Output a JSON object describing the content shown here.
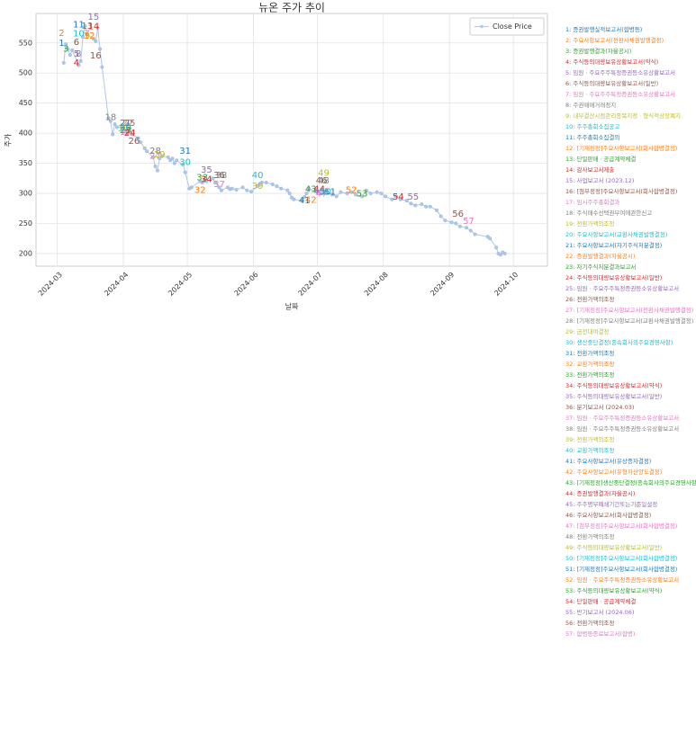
{
  "chart_data": {
    "type": "line",
    "title": "뉴온 주가 추이",
    "x_label": "날짜",
    "y_label": "주가",
    "grid": true,
    "legend": "upper right",
    "xlim": [
      "2024-02-20",
      "2024-10-17"
    ],
    "xticks": [
      "2024-03",
      "2024-04",
      "2024-05",
      "2024-06",
      "2024-07",
      "2024-08",
      "2024-09",
      "2024-10"
    ],
    "ylim": [
      179,
      599
    ],
    "yticks": [
      200,
      250,
      300,
      350,
      400,
      450,
      500,
      550
    ],
    "x": [
      "2024-03-04",
      "2024-03-05",
      "2024-03-06",
      "2024-03-07",
      "2024-03-08",
      "2024-03-11",
      "2024-03-12",
      "2024-03-13",
      "2024-03-14",
      "2024-03-15",
      "2024-03-18",
      "2024-03-19",
      "2024-03-20",
      "2024-03-21",
      "2024-03-22",
      "2024-03-25",
      "2024-03-26",
      "2024-03-27",
      "2024-03-28",
      "2024-03-29",
      "2024-04-01",
      "2024-04-02",
      "2024-04-03",
      "2024-04-04",
      "2024-04-05",
      "2024-04-08",
      "2024-04-09",
      "2024-04-11",
      "2024-04-12",
      "2024-04-15",
      "2024-04-16",
      "2024-04-17",
      "2024-04-18",
      "2024-04-19",
      "2024-04-22",
      "2024-04-23",
      "2024-04-24",
      "2024-04-25",
      "2024-04-26",
      "2024-04-29",
      "2024-04-30",
      "2024-05-02",
      "2024-05-03",
      "2024-05-07",
      "2024-05-08",
      "2024-05-09",
      "2024-05-10",
      "2024-05-13",
      "2024-05-14",
      "2024-05-16",
      "2024-05-17",
      "2024-05-20",
      "2024-05-21",
      "2024-05-22",
      "2024-05-24",
      "2024-05-27",
      "2024-05-29",
      "2024-05-31",
      "2024-06-03",
      "2024-06-04",
      "2024-06-05",
      "2024-06-07",
      "2024-06-10",
      "2024-06-12",
      "2024-06-14",
      "2024-06-17",
      "2024-06-18",
      "2024-06-19",
      "2024-06-20",
      "2024-06-24",
      "2024-06-25",
      "2024-06-26",
      "2024-06-27",
      "2024-07-01",
      "2024-07-03",
      "2024-07-05",
      "2024-07-08",
      "2024-07-10",
      "2024-07-12",
      "2024-07-15",
      "2024-07-17",
      "2024-07-19",
      "2024-07-22",
      "2024-07-24",
      "2024-07-26",
      "2024-07-29",
      "2024-07-31",
      "2024-08-02",
      "2024-08-05",
      "2024-08-07",
      "2024-08-09",
      "2024-08-12",
      "2024-08-14",
      "2024-08-16",
      "2024-08-19",
      "2024-08-21",
      "2024-08-23",
      "2024-08-26",
      "2024-08-28",
      "2024-08-30",
      "2024-09-02",
      "2024-09-04",
      "2024-09-06",
      "2024-09-09",
      "2024-09-11",
      "2024-09-13",
      "2024-09-19",
      "2024-09-20",
      "2024-09-23",
      "2024-09-24",
      "2024-09-25",
      "2024-09-26",
      "2024-09-27"
    ],
    "series": [
      {
        "name": "Close Price",
        "color": "#aec7e8",
        "values": [
          517,
          548,
          540,
          530,
          538,
          513,
          520,
          560,
          578,
          565,
          557,
          553,
          575,
          540,
          510,
          425,
          420,
          398,
          415,
          410,
          410,
          402,
          400,
          408,
          398,
          392,
          385,
          375,
          370,
          360,
          345,
          338,
          358,
          362,
          360,
          355,
          358,
          350,
          355,
          348,
          335,
          308,
          310,
          320,
          318,
          322,
          320,
          325,
          318,
          310,
          305,
          310,
          307,
          308,
          306,
          310,
          305,
          303,
          312,
          316,
          318,
          318,
          315,
          312,
          308,
          305,
          300,
          293,
          290,
          288,
          294,
          300,
          308,
          302,
          300,
          302,
          298,
          295,
          302,
          300,
          302,
          298,
          295,
          305,
          300,
          302,
          300,
          295,
          290,
          295,
          290,
          288,
          283,
          280,
          282,
          278,
          278,
          272,
          262,
          255,
          252,
          250,
          245,
          243,
          238,
          232,
          228,
          225,
          210,
          200,
          198,
          202,
          200
        ]
      }
    ],
    "annotation_colors": [
      "#1f77b4",
      "#ff7f0e",
      "#2ca02c",
      "#d62728",
      "#9467bd",
      "#8c564b",
      "#e377c2",
      "#7f7f7f",
      "#bcbd22",
      "#17becf"
    ],
    "annotations": [
      {
        "label": "1",
        "x": "2024-03-03",
        "y": 550,
        "text": "1: 증권발행실적보고서(합병등)"
      },
      {
        "label": "2",
        "x": "2024-03-03",
        "y": 566,
        "text": "2: 주요사항보고서(전환사채권발행결정)"
      },
      {
        "label": "3",
        "x": "2024-03-05",
        "y": 540,
        "text": "3: 증권발행결과(자율공시)"
      },
      {
        "label": "4",
        "x": "2024-03-10",
        "y": 517,
        "text": "4: 주식등의대량보유상황보고서(약식)"
      },
      {
        "label": "5",
        "x": "2024-03-10",
        "y": 532,
        "text": "5: 임원ㆍ주요주주특정증권등소유상황보고서"
      },
      {
        "label": "6",
        "x": "2024-03-10",
        "y": 551,
        "text": "6: 주식등의대량보유상황보고서(일반)"
      },
      {
        "label": "7",
        "x": "2024-03-15",
        "y": 565,
        "text": "7: 임원ㆍ주요주주특정증권등소유상황보고서"
      },
      {
        "label": "8",
        "x": "2024-03-11",
        "y": 532,
        "text": "8: 주권매매거래정지"
      },
      {
        "label": "9",
        "x": "2024-03-15",
        "y": 562,
        "text": "9: 내부결산시점관리종목지정ㆍ형식적상장폐지"
      },
      {
        "label": "10",
        "x": "2024-03-11",
        "y": 565,
        "text": "10: 주주총회소집공고"
      },
      {
        "label": "11",
        "x": "2024-03-11",
        "y": 580,
        "text": "11: 주주총회소집결의"
      },
      {
        "label": "12",
        "x": "2024-03-16",
        "y": 562,
        "text": "12: [기재정정]주요사항보고서(회사합병결정)"
      },
      {
        "label": "13",
        "x": "2024-03-15",
        "y": 578,
        "text": "13: 단일판매ㆍ공급계약체결"
      },
      {
        "label": "14",
        "x": "2024-03-18",
        "y": 577,
        "text": "14: 감사보고서제출"
      },
      {
        "label": "15",
        "x": "2024-03-18",
        "y": 593,
        "text": "15: 사업보고서 (2023.12)"
      },
      {
        "label": "16",
        "x": "2024-03-19",
        "y": 529,
        "text": "16: [첨부정정]주요사항보고서(회사합병결정)"
      },
      {
        "label": "17",
        "x": "2024-04-02",
        "y": 402,
        "text": "17: 임시주주총회결과"
      },
      {
        "label": "18",
        "x": "2024-03-26",
        "y": 426,
        "text": "18: 주식매수선택권부여에관한신고"
      },
      {
        "label": "19",
        "x": "2024-04-01",
        "y": 408,
        "text": "19: 전환가액의조정"
      },
      {
        "label": "20",
        "x": "2024-04-02",
        "y": 410,
        "text": "20: 주요사항보고서(교환사채권발행결정)"
      },
      {
        "label": "21",
        "x": "2024-04-02",
        "y": 417,
        "text": "21: 주요사항보고서(자기주식처분결정)"
      },
      {
        "label": "22",
        "x": "2024-04-03",
        "y": 417,
        "text": "22: 증권발행결과(자율공시)"
      },
      {
        "label": "23",
        "x": "2024-04-02",
        "y": 405,
        "text": "23: 자기주식처분결과보고서"
      },
      {
        "label": "24",
        "x": "2024-04-04",
        "y": 400,
        "text": "24: 주식등의대량보유상황보고서(일반)"
      },
      {
        "label": "25",
        "x": "2024-04-04",
        "y": 417,
        "text": "25: 임원ㆍ주요주주특정증권등소유상황보고서"
      },
      {
        "label": "26",
        "x": "2024-04-06",
        "y": 387,
        "text": "26: 전환가액의조정"
      },
      {
        "label": "27",
        "x": "2024-04-16",
        "y": 362,
        "text": "27: [기재정정]주요사항보고서(전환사채권발행결정)"
      },
      {
        "label": "28",
        "x": "2024-04-16",
        "y": 370,
        "text": "28: [기재정정]주요사항보고서(교환사채권발행결정)"
      },
      {
        "label": "29",
        "x": "2024-04-18",
        "y": 364,
        "text": "29: 금전대여결정"
      },
      {
        "label": "30",
        "x": "2024-04-30",
        "y": 352,
        "text": "30: 생산중단결정(종속회사의주요경영사항)"
      },
      {
        "label": "31",
        "x": "2024-04-30",
        "y": 370,
        "text": "31: 전환가액의조정"
      },
      {
        "label": "32",
        "x": "2024-05-07",
        "y": 305,
        "text": "32: 교환가액의조정"
      },
      {
        "label": "33",
        "x": "2024-05-08",
        "y": 326,
        "text": "33: 전환가액의조정"
      },
      {
        "label": "34",
        "x": "2024-05-10",
        "y": 323,
        "text": "34: 주식등의대량보유상황보고서(약식)"
      },
      {
        "label": "35",
        "x": "2024-05-10",
        "y": 339,
        "text": "35: 주식등의대량보유상황보고서(일반)"
      },
      {
        "label": "36",
        "x": "2024-05-16",
        "y": 330,
        "text": "36: 분기보고서 (2024.03)"
      },
      {
        "label": "37",
        "x": "2024-05-16",
        "y": 315,
        "text": "37: 임원ㆍ주요주주특정증권등소유상황보고서"
      },
      {
        "label": "38",
        "x": "2024-05-17",
        "y": 330,
        "text": "38: 임원ㆍ주요주주특정증권등소유상황보고서"
      },
      {
        "label": "39",
        "x": "2024-06-03",
        "y": 312,
        "text": "39: 전환가액의조정"
      },
      {
        "label": "40",
        "x": "2024-06-03",
        "y": 330,
        "text": "40: 교환가액의조정"
      },
      {
        "label": "41",
        "x": "2024-06-25",
        "y": 288,
        "text": "41: 주요사항보고서(유상증자결정)"
      },
      {
        "label": "42",
        "x": "2024-06-28",
        "y": 289,
        "text": "42: 주요사항보고서(유형자산양도결정)"
      },
      {
        "label": "43",
        "x": "2024-06-28",
        "y": 307,
        "text": "43: [기재정정]생산중단결정(종속회사의주요경영사항)"
      },
      {
        "label": "44",
        "x": "2024-07-02",
        "y": 307,
        "text": "44: 증권발행결과(자율공시)"
      },
      {
        "label": "45",
        "x": "2024-07-02",
        "y": 303,
        "text": "45: 주주명부폐쇄기간또는기준일설정"
      },
      {
        "label": "46",
        "x": "2024-07-03",
        "y": 321,
        "text": "46: 주요사항보고서(회사합병결정)"
      },
      {
        "label": "47",
        "x": "2024-07-03",
        "y": 299,
        "text": "47: [첨부정정]주요사항보고서(회사합병결정)"
      },
      {
        "label": "48",
        "x": "2024-07-04",
        "y": 321,
        "text": "48: 전환가액의조정"
      },
      {
        "label": "49",
        "x": "2024-07-04",
        "y": 334,
        "text": "49: 주식등의대량보유상황보고서(일반)"
      },
      {
        "label": "50",
        "x": "2024-07-05",
        "y": 302,
        "text": "50: [기재정정]주요사항보고서(회사합병결정)"
      },
      {
        "label": "51",
        "x": "2024-07-07",
        "y": 302,
        "text": "51: [기재정정]주요사항보고서(회사합병결정)"
      },
      {
        "label": "52",
        "x": "2024-07-17",
        "y": 305,
        "text": "52: 임원ㆍ주요주주특정증권등소유상황보고서"
      },
      {
        "label": "53",
        "x": "2024-07-22",
        "y": 299,
        "text": "53: 주식등의대량보유상황보고서(약식)"
      },
      {
        "label": "54",
        "x": "2024-08-08",
        "y": 294,
        "text": "54: 단일판매ㆍ공급계약체결"
      },
      {
        "label": "55",
        "x": "2024-08-15",
        "y": 294,
        "text": "55: 반기보고서 (2024.06)"
      },
      {
        "label": "56",
        "x": "2024-09-05",
        "y": 266,
        "text": "56: 전환가액의조정"
      },
      {
        "label": "57",
        "x": "2024-09-10",
        "y": 254,
        "text": "57: 합병등종료보고서(합병)"
      }
    ]
  }
}
